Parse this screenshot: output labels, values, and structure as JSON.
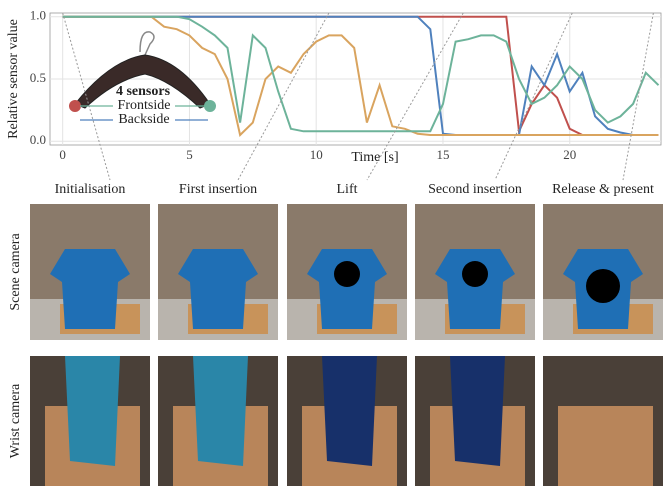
{
  "chart_data": {
    "type": "line",
    "xlabel": "Time [s]",
    "ylabel": "Relative sensor value",
    "x": [
      0,
      0.5,
      1,
      1.5,
      2,
      2.5,
      3,
      3.5,
      4,
      4.5,
      5,
      5.5,
      6,
      6.5,
      7,
      7.5,
      8,
      8.5,
      9,
      9.5,
      10,
      10.5,
      11,
      11.5,
      12,
      12.5,
      13,
      13.5,
      14,
      14.5,
      15,
      15.5,
      16,
      16.5,
      17,
      17.5,
      18,
      18.5,
      19,
      19.5,
      20,
      20.5,
      21,
      21.5,
      22,
      22.5,
      23,
      23.5
    ],
    "series": [
      {
        "color": "#c0504d",
        "values": [
          1,
          1,
          1,
          1,
          1,
          1,
          1,
          1,
          1,
          1,
          1,
          1,
          1,
          1,
          1,
          1,
          1,
          1,
          1,
          1,
          1,
          1,
          1,
          1,
          1,
          1,
          1,
          1,
          1,
          1,
          1,
          1,
          1,
          1,
          1,
          1,
          0.08,
          0.3,
          0.45,
          0.35,
          0.1,
          0.05,
          0.05,
          0.05,
          0.05,
          0.05,
          0.05,
          0.05
        ]
      },
      {
        "color": "#4f81bd",
        "values": [
          1,
          1,
          1,
          1,
          1,
          1,
          1,
          1,
          1,
          1,
          1,
          1,
          1,
          1,
          1,
          1,
          1,
          1,
          1,
          1,
          1,
          1,
          1,
          1,
          1,
          1,
          1,
          1,
          1,
          0.9,
          0.06,
          0.05,
          0.05,
          0.05,
          0.05,
          0.05,
          0.05,
          0.6,
          0.45,
          0.7,
          0.4,
          0.55,
          0.2,
          0.1,
          0.07,
          0.05,
          0.05,
          0.05
        ]
      },
      {
        "color": "#d9a45f",
        "values": [
          1,
          1,
          1,
          1,
          1,
          1,
          1,
          1,
          0.92,
          0.9,
          0.85,
          0.75,
          0.7,
          0.5,
          0.05,
          0.15,
          0.5,
          0.6,
          0.55,
          0.7,
          0.8,
          0.85,
          0.85,
          0.75,
          0.15,
          0.45,
          0.12,
          0.1,
          0.06,
          0.05,
          0.05,
          0.05,
          0.05,
          0.05,
          0.05,
          0.05,
          0.05,
          0.05,
          0.05,
          0.05,
          0.05,
          0.05,
          0.05,
          0.05,
          0.05,
          0.05,
          0.05,
          0.05
        ]
      },
      {
        "color": "#6db39a",
        "values": [
          1,
          1,
          1,
          1,
          1,
          1,
          1,
          1,
          1,
          1,
          0.98,
          0.92,
          0.85,
          0.75,
          0.15,
          0.85,
          0.75,
          0.4,
          0.1,
          0.08,
          0.08,
          0.08,
          0.08,
          0.08,
          0.08,
          0.08,
          0.08,
          0.08,
          0.08,
          0.08,
          0.3,
          0.8,
          0.82,
          0.85,
          0.85,
          0.8,
          0.5,
          0.3,
          0.35,
          0.45,
          0.6,
          0.5,
          0.25,
          0.15,
          0.2,
          0.3,
          0.55,
          0.45
        ]
      }
    ],
    "legend": {
      "title": "4 sensors",
      "entries": [
        {
          "label": "Frontside",
          "color": "#6db39a"
        },
        {
          "label": "Backside",
          "color": "#4f81bd"
        }
      ]
    },
    "xlim": [
      -0.5,
      23.6
    ],
    "ylim": [
      -0.03,
      1.03
    ],
    "xticks": [
      0,
      5,
      10,
      15,
      20
    ],
    "yticks": [
      {
        "value": 0,
        "label": "0.0"
      },
      {
        "value": 0.5,
        "label": "0.5"
      },
      {
        "value": 1,
        "label": "1.0"
      }
    ],
    "grid": true
  },
  "phases": [
    {
      "label": "Initialisation",
      "time": 0
    },
    {
      "label": "First insertion",
      "time": 10.5
    },
    {
      "label": "Lift",
      "time": 15.8
    },
    {
      "label": "Second insertion",
      "time": 20.1
    },
    {
      "label": "Release & present",
      "time": 23.3
    }
  ],
  "rows": [
    "Scene camera",
    "Wrist camera"
  ]
}
